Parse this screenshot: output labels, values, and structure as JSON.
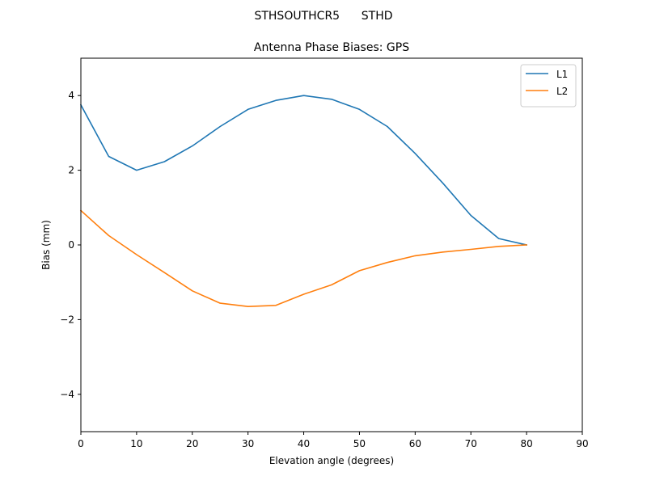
{
  "chart_data": {
    "type": "line",
    "suptitle": "STHSOUTHCR5      STHD",
    "title": "Antenna Phase Biases: GPS",
    "xlabel": "Elevation angle (degrees)",
    "ylabel": "Bias (mm)",
    "xlim": [
      0,
      90
    ],
    "ylim": [
      -5,
      5
    ],
    "xticks": [
      0,
      10,
      20,
      30,
      40,
      50,
      60,
      70,
      80,
      90
    ],
    "xtick_labels": [
      "0",
      "10",
      "20",
      "30",
      "40",
      "50",
      "60",
      "70",
      "80",
      "90"
    ],
    "yticks": [
      -4,
      -2,
      0,
      2,
      4
    ],
    "ytick_labels": [
      "−4",
      "−2",
      "0",
      "2",
      "4"
    ],
    "grid": false,
    "legend_position": "top-right",
    "x": [
      0,
      5,
      10,
      15,
      20,
      25,
      30,
      35,
      40,
      45,
      50,
      55,
      60,
      65,
      70,
      75,
      80
    ],
    "series": [
      {
        "name": "L1",
        "color": "#1f77b4",
        "values": [
          3.75,
          2.37,
          2.0,
          2.23,
          2.65,
          3.17,
          3.63,
          3.87,
          4.0,
          3.9,
          3.63,
          3.17,
          2.45,
          1.65,
          0.79,
          0.17,
          0.0
        ]
      },
      {
        "name": "L2",
        "color": "#ff7f0e",
        "values": [
          0.92,
          0.25,
          -0.26,
          -0.74,
          -1.23,
          -1.56,
          -1.65,
          -1.62,
          -1.32,
          -1.07,
          -0.69,
          -0.47,
          -0.29,
          -0.19,
          -0.12,
          -0.04,
          0.0
        ]
      }
    ]
  }
}
